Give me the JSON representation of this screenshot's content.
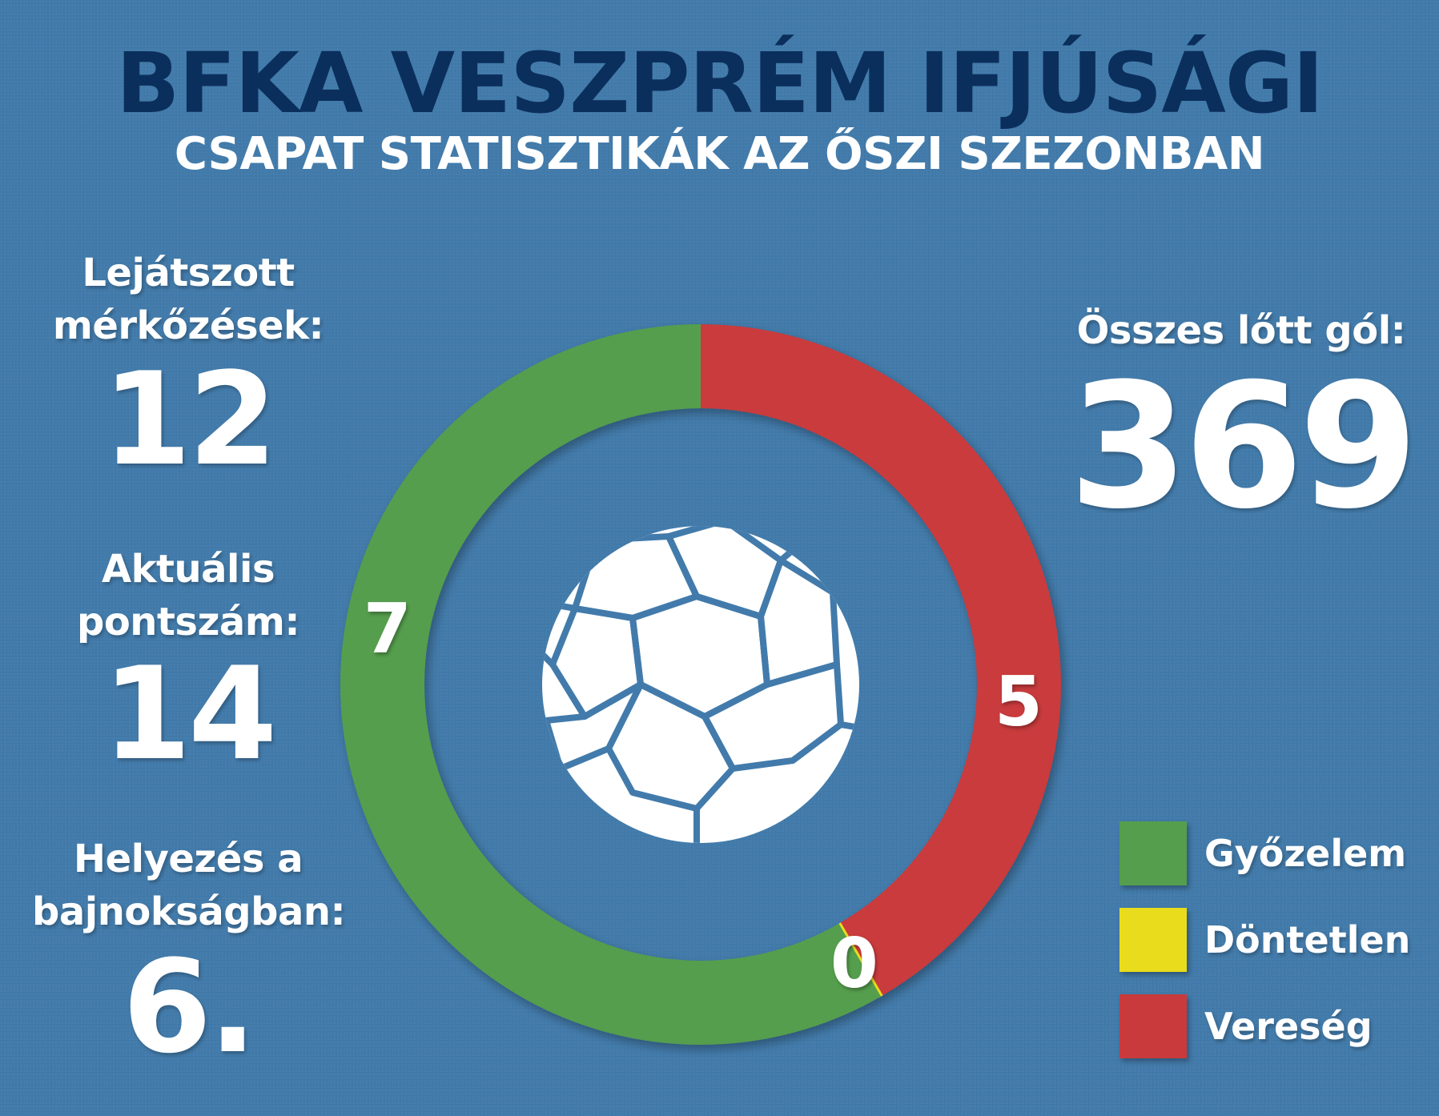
{
  "title": "BFKA VESZPRÉM IFJÚSÁGI",
  "subtitle": "CSAPAT STATISZTIKÁK AZ ŐSZI SZEZONBAN",
  "stats": {
    "played": {
      "label_line1": "Lejátszott",
      "label_line2": "mérkőzések:",
      "value": "12"
    },
    "points": {
      "label_line1": "Aktuális",
      "label_line2": "pontszám:",
      "value": "14"
    },
    "rank": {
      "label_line1": "Helyezés a",
      "label_line2": "bajnokságban:",
      "value": "6."
    },
    "goals": {
      "label": "Összes lőtt gól:",
      "value": "369"
    }
  },
  "center_icon": "soccer-ball-icon",
  "chart_data": {
    "type": "pie",
    "donut": true,
    "title": "",
    "slices": [
      {
        "name": "Vereség",
        "value": 5,
        "color": "#c93a3c"
      },
      {
        "name": "Döntetlen",
        "value": 0,
        "color": "#e8dc1c"
      },
      {
        "name": "Győzelem",
        "value": 7,
        "color": "#559e4d"
      }
    ],
    "start": "top",
    "direction": "clockwise",
    "legend_position": "bottom-right"
  },
  "legend": [
    {
      "label": "Győzelem",
      "color": "#559e4d"
    },
    {
      "label": "Döntetlen",
      "color": "#e8dc1c"
    },
    {
      "label": "Vereség",
      "color": "#c93a3c"
    }
  ]
}
